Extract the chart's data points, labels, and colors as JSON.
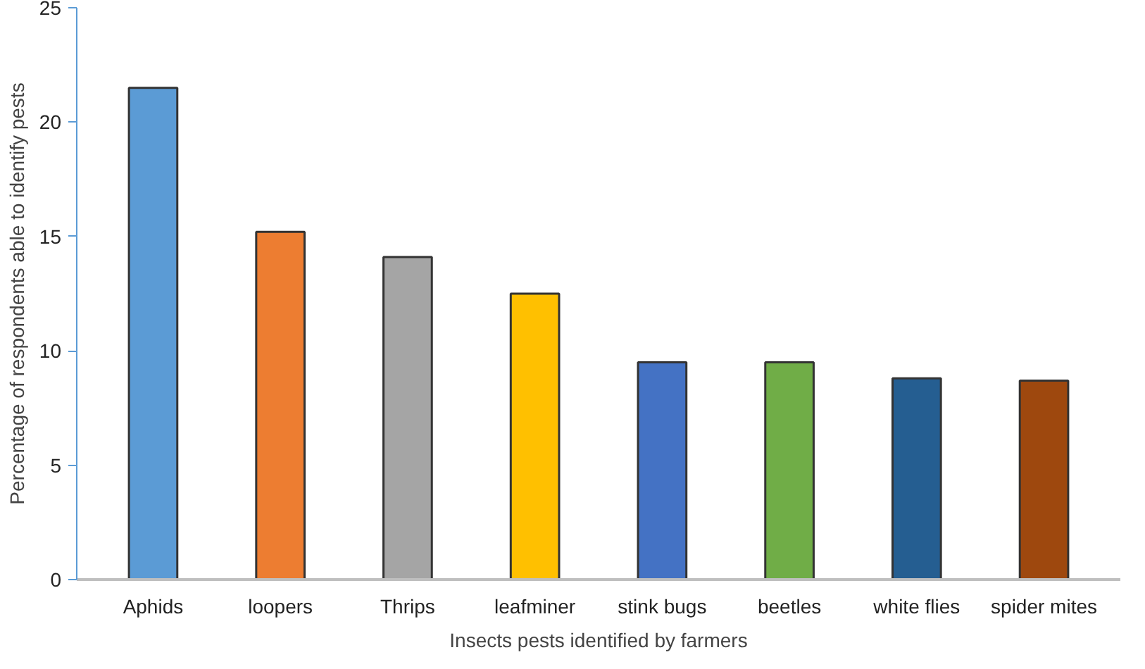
{
  "chart_data": {
    "type": "bar",
    "xlabel": "Insects pests identified by farmers",
    "ylabel": "Percentage of respondents able to identify pests",
    "categories": [
      "Aphids",
      "loopers",
      "Thrips",
      "leafminer",
      "stink bugs",
      "beetles",
      "white flies",
      "spider mites"
    ],
    "values": [
      21.5,
      15.2,
      14.1,
      12.5,
      9.5,
      9.5,
      8.8,
      8.7
    ],
    "colors": [
      "#5b9bd5",
      "#ed7d31",
      "#a5a5a5",
      "#ffc000",
      "#4472c4",
      "#70ad47",
      "#255e91",
      "#9e480e"
    ],
    "ylim": [
      0,
      25
    ],
    "yticks": [
      0,
      5,
      10,
      15,
      20,
      25
    ],
    "grid": false
  }
}
